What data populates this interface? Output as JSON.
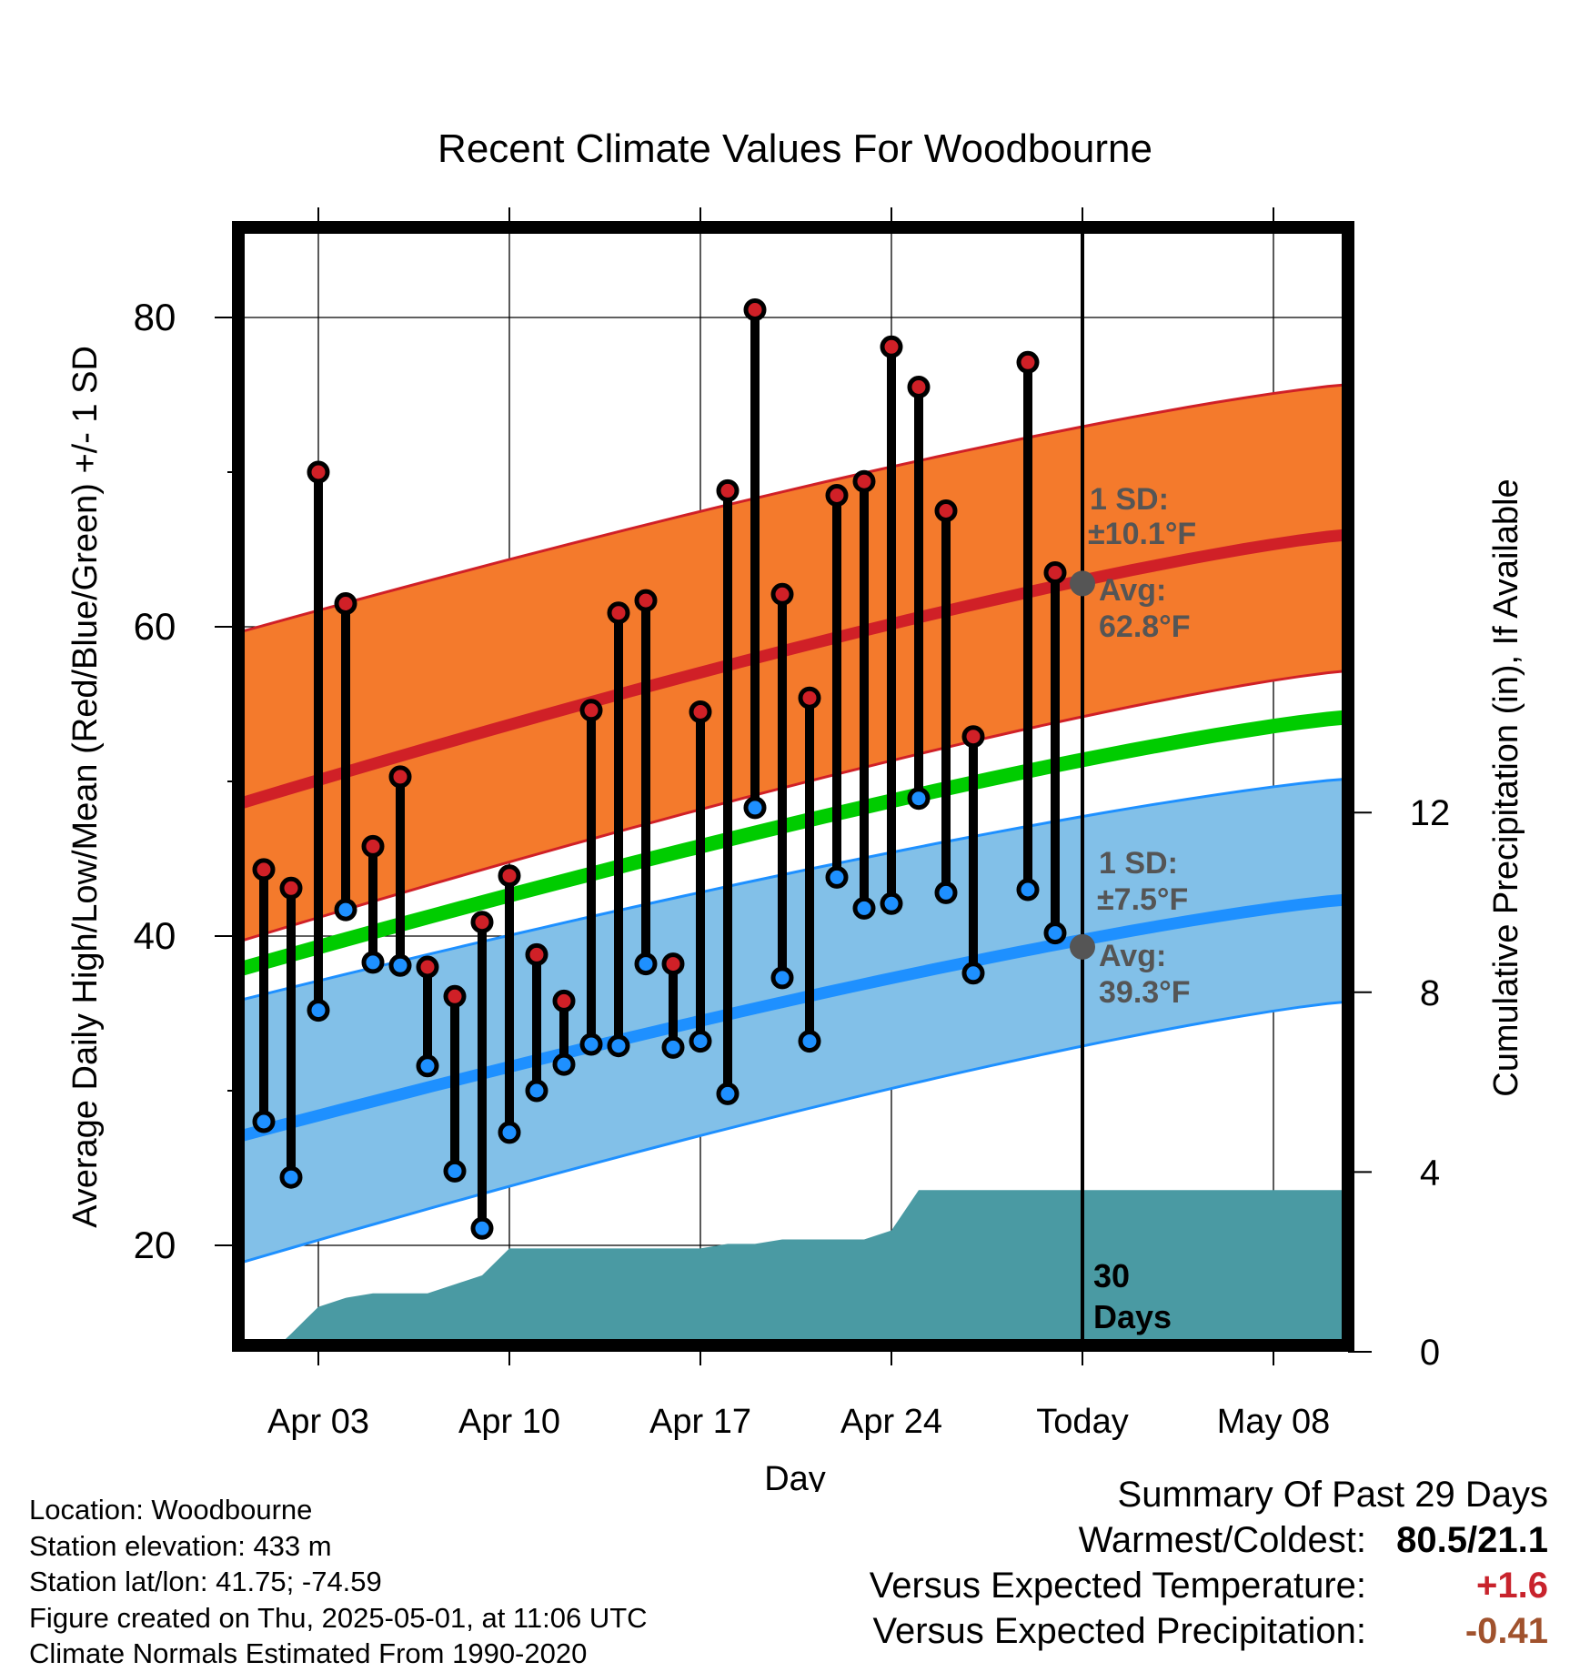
{
  "chart_data": {
    "type": "line",
    "title": "Recent Climate Values For Woodbourne",
    "xlabel": "Day",
    "ylabel": "Average Daily High/Low/Mean (Red/Blue/Green) +/- 1 SD",
    "y2label": "Cumulative Precipitation (in), If Available",
    "xticks": [
      "Apr 03",
      "Apr 10",
      "Apr 17",
      "Apr 24",
      "Today",
      "May 08"
    ],
    "yticks": [
      "20",
      "40",
      "60",
      "80"
    ],
    "y2ticks": [
      "0",
      "4",
      "8",
      "12"
    ],
    "ylim": [
      13.5,
      86
    ],
    "y2lim": [
      0,
      24.2
    ],
    "grid": true,
    "today_label": "30 Days",
    "colors": {
      "high": "#d02027",
      "high_band": "#f47a2c",
      "low": "#1e90ff",
      "low_band": "#82c0e8",
      "mean": "#00cc00",
      "precip": "#4a9aa3",
      "avg_marker": "#555555"
    },
    "normals": {
      "start_day": "Mar 31",
      "end_day": "May 11",
      "high_avg": [
        48.5,
        66.0
      ],
      "high_sd_upper": [
        59.6,
        75.7
      ],
      "high_sd_lower": [
        39.6,
        57.2
      ],
      "low_avg": [
        27.0,
        42.4
      ],
      "low_sd_upper": [
        35.8,
        50.2
      ],
      "low_sd_lower": [
        18.8,
        35.8
      ],
      "mean_avg": [
        37.8,
        54.2
      ]
    },
    "high_annotation": {
      "sd_label": "1 SD:",
      "sd_value": "±10.1°F",
      "avg_label": "Avg:",
      "avg_value": "62.8°F",
      "avg": 62.8
    },
    "low_annotation": {
      "sd_label": "1 SD:",
      "sd_value": "±7.5°F",
      "avg_label": "Avg:",
      "avg_value": "39.3°F",
      "avg": 39.3
    },
    "days": [
      "Apr 01",
      "Apr 02",
      "Apr 03",
      "Apr 04",
      "Apr 05",
      "Apr 06",
      "Apr 07",
      "Apr 08",
      "Apr 09",
      "Apr 10",
      "Apr 11",
      "Apr 12",
      "Apr 13",
      "Apr 14",
      "Apr 15",
      "Apr 16",
      "Apr 17",
      "Apr 18",
      "Apr 19",
      "Apr 20",
      "Apr 21",
      "Apr 22",
      "Apr 23",
      "Apr 24",
      "Apr 25",
      "Apr 26",
      "Apr 27",
      "Apr 28",
      "Apr 29",
      "Apr 30"
    ],
    "series": [
      {
        "name": "High",
        "values": [
          44.3,
          43.1,
          70.0,
          61.5,
          45.8,
          50.3,
          38.0,
          36.1,
          40.9,
          43.9,
          38.8,
          35.8,
          54.6,
          60.9,
          61.7,
          38.2,
          54.5,
          68.8,
          80.5,
          62.1,
          55.4,
          68.5,
          69.4,
          78.1,
          75.5,
          67.5,
          52.9,
          null,
          77.1,
          63.5
        ]
      },
      {
        "name": "Low",
        "values": [
          28.0,
          24.4,
          35.2,
          41.7,
          38.3,
          38.1,
          31.6,
          24.8,
          21.1,
          27.3,
          30.0,
          31.7,
          33.0,
          32.9,
          38.2,
          32.8,
          33.2,
          29.8,
          48.3,
          37.3,
          33.2,
          43.8,
          41.8,
          42.1,
          48.9,
          42.8,
          37.6,
          null,
          43.0,
          40.2
        ]
      },
      {
        "name": "Cumulative Precipitation",
        "x": [
          1.3,
          2,
          2.5,
          3,
          4,
          5,
          6,
          7,
          8,
          9,
          10,
          11,
          12,
          13,
          14,
          15,
          16,
          17,
          18,
          19,
          20,
          21,
          22,
          23,
          24,
          25,
          26,
          30,
          40.8
        ],
        "values": [
          0,
          0.4,
          0.7,
          1.0,
          1.2,
          1.3,
          1.3,
          1.3,
          1.5,
          1.7,
          2.3,
          2.3,
          2.3,
          2.3,
          2.3,
          2.3,
          2.3,
          2.3,
          2.4,
          2.4,
          2.5,
          2.5,
          2.5,
          2.5,
          2.7,
          3.6,
          3.6,
          3.6,
          3.6
        ]
      }
    ]
  },
  "footer": {
    "location": "Location: Woodbourne",
    "elevation": "Station elevation: 433 m",
    "latlon": "Station lat/lon: 41.75; -74.59",
    "created": "Figure created on Thu, 2025-05-01, at 11:06 UTC",
    "normals": "Climate Normals Estimated From 1990-2020"
  },
  "summary": {
    "title": "Summary Of Past 29 Days",
    "warm_cold_label": "Warmest/Coldest:",
    "warm_cold_value": "80.5/21.1",
    "temp_label": "Versus Expected Temperature:",
    "temp_value": "+1.6",
    "temp_color": "#c8232c",
    "precip_label": "Versus Expected Precipitation:",
    "precip_value": "-0.41",
    "precip_color": "#a0522d"
  }
}
